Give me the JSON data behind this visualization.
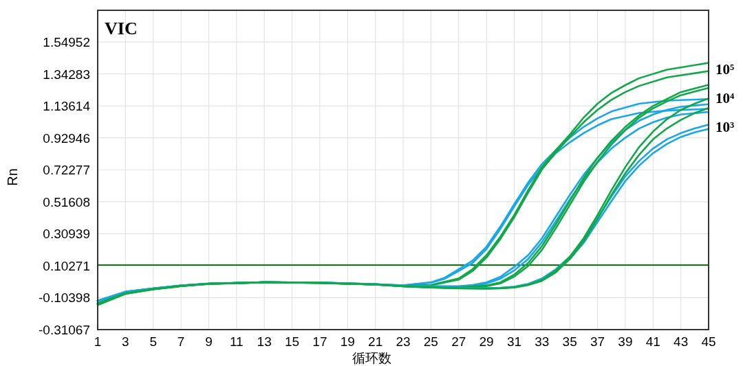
{
  "chart_data": {
    "type": "line",
    "title": "VIC",
    "xlabel": "循环数",
    "ylabel": "Rn",
    "xlim": [
      1,
      45
    ],
    "xticks": [
      1,
      3,
      5,
      7,
      9,
      11,
      13,
      15,
      17,
      19,
      21,
      23,
      25,
      27,
      29,
      31,
      33,
      35,
      37,
      39,
      41,
      43,
      45
    ],
    "ylim": [
      -0.31067,
      1.754
    ],
    "yticks": [
      -0.31067,
      -0.10398,
      0.10271,
      0.30939,
      0.51608,
      0.72277,
      0.92946,
      1.13614,
      1.34283,
      1.54952
    ],
    "grid": true,
    "marker": "none",
    "line_style": "solid",
    "ref_lines": [
      {
        "axis": "y",
        "value": 0.107,
        "color": "#0a7a0a"
      }
    ],
    "annotations": [
      "10⁵",
      "10⁴",
      "10³"
    ],
    "series": [
      {
        "color": "#1aa7e8",
        "x": [
          1,
          3,
          5,
          7,
          9,
          13,
          17,
          21,
          23,
          25,
          26,
          27,
          28,
          29,
          30,
          31,
          32,
          33,
          34,
          35,
          36,
          37,
          38,
          40,
          42,
          45
        ],
        "values": [
          -0.124,
          -0.066,
          -0.044,
          -0.026,
          -0.013,
          -0.004,
          -0.007,
          -0.017,
          -0.024,
          -0.005,
          0.025,
          0.08,
          0.135,
          0.225,
          0.355,
          0.5,
          0.64,
          0.76,
          0.85,
          0.93,
          1.0,
          1.055,
          1.1,
          1.15,
          1.17,
          1.18
        ]
      },
      {
        "color": "#1aa7e8",
        "x": [
          1,
          3,
          5,
          7,
          9,
          13,
          17,
          21,
          23,
          25,
          26,
          27,
          28,
          29,
          30,
          31,
          32,
          33,
          34,
          35,
          36,
          37,
          38,
          40,
          42,
          45
        ],
        "values": [
          -0.128,
          -0.068,
          -0.045,
          -0.027,
          -0.013,
          -0.004,
          -0.007,
          -0.018,
          -0.025,
          -0.008,
          0.018,
          0.068,
          0.12,
          0.21,
          0.34,
          0.485,
          0.625,
          0.74,
          0.83,
          0.9,
          0.96,
          1.01,
          1.05,
          1.09,
          1.105,
          1.117
        ]
      },
      {
        "color": "#12a84a",
        "x": [
          1,
          3,
          5,
          7,
          9,
          13,
          17,
          21,
          23,
          25,
          27,
          28,
          29,
          30,
          31,
          32,
          33,
          34,
          35,
          36,
          37,
          38,
          39,
          40,
          42,
          45
        ],
        "values": [
          -0.142,
          -0.075,
          -0.048,
          -0.028,
          -0.014,
          -0.005,
          -0.008,
          -0.019,
          -0.028,
          -0.022,
          0.02,
          0.08,
          0.17,
          0.29,
          0.43,
          0.59,
          0.74,
          0.85,
          0.95,
          1.06,
          1.15,
          1.22,
          1.27,
          1.315,
          1.37,
          1.414
        ]
      },
      {
        "color": "#12a84a",
        "x": [
          1,
          3,
          5,
          7,
          9,
          13,
          17,
          21,
          23,
          25,
          27,
          28,
          29,
          30,
          31,
          32,
          33,
          34,
          35,
          36,
          37,
          38,
          39,
          40,
          42,
          45
        ],
        "values": [
          -0.146,
          -0.077,
          -0.049,
          -0.029,
          -0.015,
          -0.005,
          -0.008,
          -0.02,
          -0.029,
          -0.024,
          0.012,
          0.068,
          0.155,
          0.275,
          0.415,
          0.575,
          0.725,
          0.835,
          0.935,
          1.03,
          1.11,
          1.175,
          1.225,
          1.265,
          1.32,
          1.361
        ]
      },
      {
        "color": "#1aa7e8",
        "x": [
          1,
          3,
          5,
          7,
          9,
          13,
          17,
          21,
          23,
          25,
          27,
          28,
          29,
          30,
          31,
          32,
          33,
          34,
          35,
          36,
          37,
          38,
          39,
          40,
          41,
          42,
          43,
          45
        ],
        "values": [
          -0.124,
          -0.066,
          -0.044,
          -0.026,
          -0.013,
          -0.004,
          -0.007,
          -0.017,
          -0.028,
          -0.03,
          -0.03,
          -0.022,
          -0.005,
          0.03,
          0.095,
          0.17,
          0.28,
          0.42,
          0.56,
          0.69,
          0.8,
          0.9,
          0.98,
          1.04,
          1.08,
          1.11,
          1.13,
          1.147
        ]
      },
      {
        "color": "#1aa7e8",
        "x": [
          1,
          3,
          5,
          7,
          9,
          13,
          17,
          21,
          23,
          25,
          27,
          28,
          29,
          30,
          31,
          32,
          33,
          34,
          35,
          36,
          37,
          38,
          39,
          40,
          41,
          42,
          43,
          45
        ],
        "values": [
          -0.126,
          -0.067,
          -0.045,
          -0.026,
          -0.013,
          -0.004,
          -0.007,
          -0.017,
          -0.028,
          -0.031,
          -0.032,
          -0.027,
          -0.012,
          0.018,
          0.072,
          0.145,
          0.255,
          0.39,
          0.53,
          0.66,
          0.77,
          0.86,
          0.93,
          0.99,
          1.03,
          1.06,
          1.08,
          1.097
        ]
      },
      {
        "color": "#12a84a",
        "x": [
          1,
          3,
          5,
          7,
          9,
          13,
          17,
          21,
          23,
          25,
          27,
          29,
          30,
          31,
          32,
          33,
          34,
          35,
          36,
          37,
          38,
          39,
          40,
          41,
          42,
          43,
          45
        ],
        "values": [
          -0.142,
          -0.075,
          -0.048,
          -0.028,
          -0.014,
          -0.005,
          -0.008,
          -0.019,
          -0.03,
          -0.035,
          -0.038,
          -0.025,
          -0.005,
          0.045,
          0.12,
          0.23,
          0.37,
          0.52,
          0.67,
          0.8,
          0.91,
          1.0,
          1.075,
          1.135,
          1.18,
          1.225,
          1.272
        ]
      },
      {
        "color": "#12a84a",
        "x": [
          1,
          3,
          5,
          7,
          9,
          13,
          17,
          21,
          23,
          25,
          27,
          29,
          30,
          31,
          32,
          33,
          34,
          35,
          36,
          37,
          38,
          39,
          40,
          41,
          42,
          43,
          45
        ],
        "values": [
          -0.152,
          -0.08,
          -0.051,
          -0.03,
          -0.015,
          -0.005,
          -0.008,
          -0.02,
          -0.03,
          -0.036,
          -0.04,
          -0.03,
          -0.012,
          0.032,
          0.1,
          0.205,
          0.345,
          0.495,
          0.645,
          0.775,
          0.885,
          0.98,
          1.06,
          1.12,
          1.165,
          1.205,
          1.252
        ]
      },
      {
        "color": "#1aa7e8",
        "x": [
          1,
          3,
          5,
          7,
          9,
          13,
          17,
          21,
          23,
          25,
          27,
          29,
          30,
          31,
          32,
          33,
          34,
          35,
          36,
          37,
          38,
          39,
          40,
          41,
          42,
          43,
          44,
          45
        ],
        "values": [
          -0.124,
          -0.066,
          -0.044,
          -0.026,
          -0.013,
          -0.004,
          -0.007,
          -0.017,
          -0.03,
          -0.036,
          -0.04,
          -0.042,
          -0.04,
          -0.033,
          -0.015,
          0.02,
          0.08,
          0.16,
          0.27,
          0.41,
          0.55,
          0.68,
          0.78,
          0.86,
          0.92,
          0.96,
          0.99,
          1.015
        ]
      },
      {
        "color": "#1aa7e8",
        "x": [
          1,
          3,
          5,
          7,
          9,
          13,
          17,
          21,
          23,
          25,
          27,
          29,
          30,
          31,
          32,
          33,
          34,
          35,
          36,
          37,
          38,
          39,
          40,
          41,
          42,
          43,
          44,
          45
        ],
        "values": [
          -0.127,
          -0.067,
          -0.045,
          -0.027,
          -0.013,
          -0.004,
          -0.007,
          -0.018,
          -0.031,
          -0.037,
          -0.041,
          -0.043,
          -0.041,
          -0.035,
          -0.018,
          0.012,
          0.068,
          0.145,
          0.25,
          0.385,
          0.52,
          0.65,
          0.75,
          0.83,
          0.89,
          0.935,
          0.965,
          0.987
        ]
      },
      {
        "color": "#12a84a",
        "x": [
          1,
          3,
          5,
          7,
          9,
          13,
          17,
          21,
          23,
          25,
          27,
          29,
          30,
          31,
          32,
          33,
          34,
          35,
          36,
          37,
          38,
          39,
          40,
          41,
          42,
          43,
          44,
          45
        ],
        "values": [
          -0.143,
          -0.075,
          -0.048,
          -0.028,
          -0.014,
          -0.005,
          -0.008,
          -0.019,
          -0.031,
          -0.038,
          -0.043,
          -0.045,
          -0.043,
          -0.037,
          -0.02,
          0.01,
          0.072,
          0.16,
          0.28,
          0.43,
          0.59,
          0.74,
          0.87,
          0.97,
          1.05,
          1.11,
          1.15,
          1.184
        ]
      },
      {
        "color": "#12a84a",
        "x": [
          1,
          3,
          5,
          7,
          9,
          13,
          17,
          21,
          23,
          25,
          27,
          29,
          30,
          31,
          32,
          33,
          34,
          35,
          36,
          37,
          38,
          39,
          40,
          41,
          42,
          43,
          44,
          45
        ],
        "values": [
          -0.147,
          -0.078,
          -0.05,
          -0.029,
          -0.015,
          -0.005,
          -0.008,
          -0.02,
          -0.031,
          -0.039,
          -0.044,
          -0.046,
          -0.044,
          -0.039,
          -0.023,
          0.005,
          0.06,
          0.145,
          0.26,
          0.405,
          0.56,
          0.7,
          0.82,
          0.92,
          0.99,
          1.045,
          1.09,
          1.122
        ]
      }
    ]
  }
}
